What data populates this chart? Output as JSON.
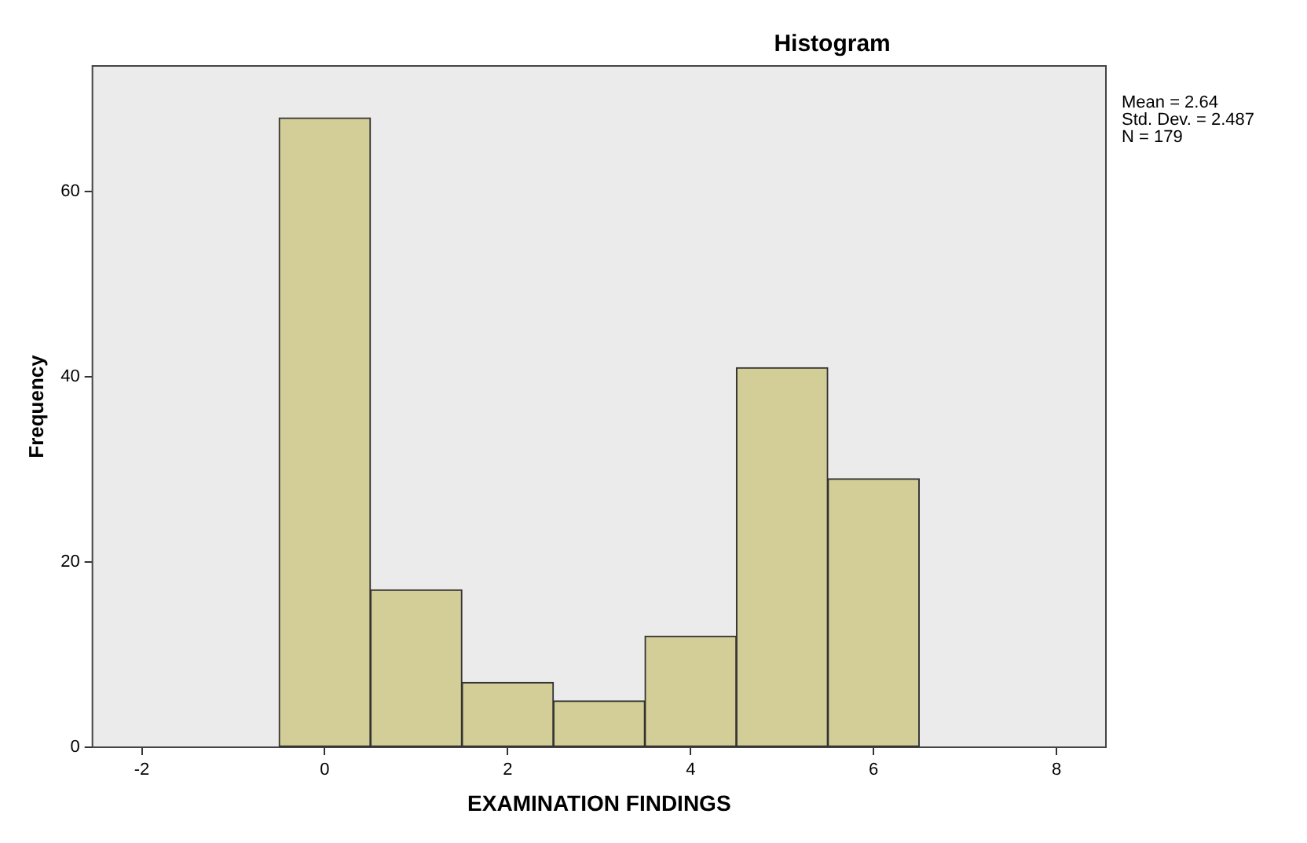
{
  "chart_data": {
    "type": "histogram",
    "title": "Histogram",
    "xlabel": "EXAMINATION FINDINGS",
    "ylabel": "Frequency",
    "bins": [
      -0.5,
      0.5,
      1.5,
      2.5,
      3.5,
      4.5,
      5.5,
      6.5
    ],
    "values": [
      68,
      17,
      7,
      5,
      12,
      41,
      29
    ],
    "color": "#d3ce97",
    "xlim": [
      -2.54,
      8.54
    ],
    "xticks": [
      -2,
      0,
      2,
      4,
      6,
      8
    ],
    "ylim": [
      0,
      73.6
    ],
    "yticks": [
      0,
      20,
      40,
      60
    ],
    "annotations": [
      "Mean = 2.64",
      "Std. Dev. = 2.487",
      "N = 179"
    ]
  }
}
